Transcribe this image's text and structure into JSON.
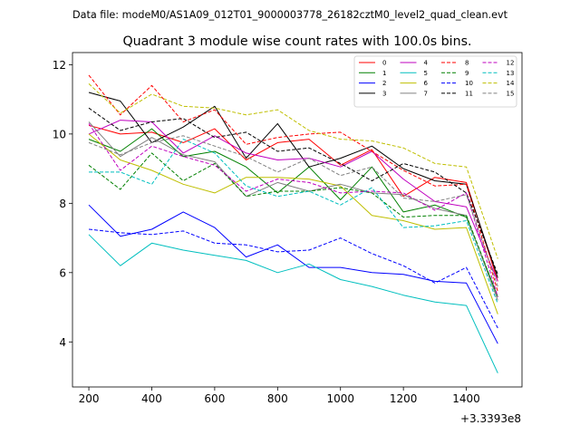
{
  "chart_data": {
    "type": "line",
    "suptitle": "Data file: modeM0/AS1A09_012T01_9000003778_26182cztM0_level2_quad_clean.evt",
    "title": "Quadrant 3 module wise count rates with 100.0s bins.",
    "xlabel": "",
    "ylabel": "",
    "x_offset_label": "+3.3393e8",
    "x": [
      200,
      300,
      400,
      500,
      600,
      700,
      800,
      900,
      1000,
      1100,
      1200,
      1300,
      1400,
      1500
    ],
    "xlim": [
      148,
      1577
    ],
    "ylim": [
      2.7,
      12.35
    ],
    "xticks": [
      200,
      400,
      600,
      800,
      1000,
      1200,
      1400
    ],
    "yticks": [
      4,
      6,
      8,
      10,
      12
    ],
    "legend_position": "top-right",
    "legend_columns": 4,
    "series": [
      {
        "name": "0",
        "color": "#ff0000",
        "dash": "solid",
        "values": [
          10.25,
          10.0,
          10.05,
          9.75,
          10.15,
          9.25,
          9.75,
          9.85,
          9.1,
          9.55,
          8.2,
          8.75,
          8.6,
          5.75
        ]
      },
      {
        "name": "1",
        "color": "#008000",
        "dash": "solid",
        "values": [
          9.85,
          9.5,
          10.15,
          9.35,
          9.5,
          9.05,
          8.3,
          9.05,
          8.1,
          9.05,
          7.75,
          7.95,
          7.6,
          5.3
        ]
      },
      {
        "name": "2",
        "color": "#0000ff",
        "dash": "solid",
        "values": [
          7.95,
          7.05,
          7.25,
          7.75,
          7.3,
          6.45,
          6.8,
          6.15,
          6.15,
          6.0,
          5.95,
          5.75,
          5.7,
          3.95
        ]
      },
      {
        "name": "3",
        "color": "#000000",
        "dash": "solid",
        "values": [
          11.2,
          10.95,
          9.75,
          10.2,
          10.8,
          9.3,
          10.3,
          9.05,
          9.3,
          9.65,
          9.0,
          8.65,
          8.55,
          5.85
        ]
      },
      {
        "name": "4",
        "color": "#bf00bf",
        "dash": "solid",
        "values": [
          10.0,
          10.4,
          10.35,
          9.45,
          9.95,
          9.45,
          9.25,
          9.3,
          9.05,
          9.5,
          8.7,
          8.05,
          7.9,
          5.75
        ]
      },
      {
        "name": "5",
        "color": "#00bfbf",
        "dash": "solid",
        "values": [
          7.1,
          6.2,
          6.85,
          6.65,
          6.5,
          6.35,
          6.0,
          6.25,
          5.8,
          5.6,
          5.35,
          5.15,
          5.05,
          3.1
        ]
      },
      {
        "name": "6",
        "color": "#bfbf00",
        "dash": "solid",
        "values": [
          10.0,
          9.25,
          8.95,
          8.55,
          8.3,
          8.75,
          8.75,
          8.7,
          8.5,
          7.65,
          7.5,
          7.25,
          7.3,
          4.8
        ]
      },
      {
        "name": "7",
        "color": "#808080",
        "dash": "solid",
        "values": [
          10.35,
          9.35,
          9.9,
          9.4,
          9.2,
          8.2,
          8.6,
          8.35,
          8.55,
          8.3,
          8.25,
          7.85,
          7.65,
          5.2
        ]
      },
      {
        "name": "8",
        "color": "#ff0000",
        "dash": "dashed",
        "values": [
          11.7,
          10.55,
          11.4,
          10.35,
          10.7,
          9.7,
          9.9,
          10.0,
          10.05,
          9.5,
          8.95,
          8.5,
          8.55,
          5.45
        ]
      },
      {
        "name": "9",
        "color": "#008000",
        "dash": "dashed",
        "values": [
          9.1,
          8.4,
          9.45,
          8.65,
          9.15,
          8.2,
          8.35,
          8.35,
          8.45,
          8.3,
          7.6,
          7.65,
          7.65,
          5.3
        ]
      },
      {
        "name": "10",
        "color": "#0000ff",
        "dash": "dashed",
        "values": [
          7.25,
          7.15,
          7.1,
          7.2,
          6.85,
          6.8,
          6.6,
          6.65,
          7.0,
          6.55,
          6.2,
          5.7,
          6.15,
          4.4
        ]
      },
      {
        "name": "11",
        "color": "#000000",
        "dash": "dashed",
        "values": [
          10.75,
          10.1,
          10.35,
          10.45,
          9.9,
          10.05,
          9.5,
          9.6,
          9.15,
          8.65,
          9.15,
          8.9,
          8.3,
          5.95
        ]
      },
      {
        "name": "12",
        "color": "#bf00bf",
        "dash": "dashed",
        "values": [
          10.3,
          8.95,
          9.65,
          9.35,
          9.1,
          8.35,
          8.7,
          8.6,
          8.3,
          8.35,
          8.3,
          7.8,
          8.3,
          5.3
        ]
      },
      {
        "name": "13",
        "color": "#00bfbf",
        "dash": "dashed",
        "values": [
          8.9,
          8.9,
          8.55,
          9.85,
          9.45,
          8.5,
          8.2,
          8.35,
          7.95,
          8.45,
          7.3,
          7.35,
          7.5,
          5.1
        ]
      },
      {
        "name": "14",
        "color": "#bfbf00",
        "dash": "dashed",
        "values": [
          11.45,
          10.6,
          11.15,
          10.8,
          10.75,
          10.55,
          10.7,
          10.1,
          9.85,
          9.8,
          9.6,
          9.15,
          9.05,
          6.4
        ]
      },
      {
        "name": "15",
        "color": "#808080",
        "dash": "dashed",
        "values": [
          9.75,
          9.4,
          9.75,
          9.95,
          9.65,
          9.35,
          8.9,
          9.3,
          8.8,
          9.05,
          8.15,
          8.05,
          8.25,
          5.6
        ]
      }
    ]
  }
}
